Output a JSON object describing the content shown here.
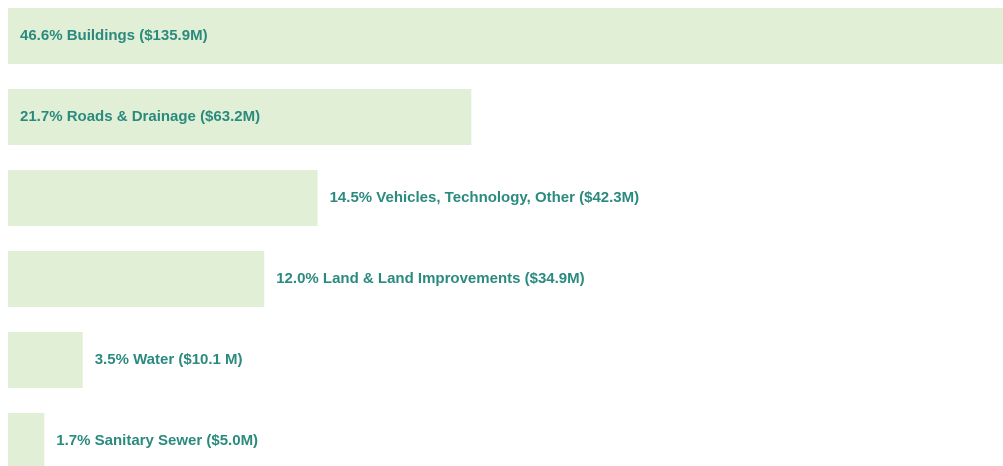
{
  "chart_data": {
    "type": "bar",
    "orientation": "horizontal",
    "color": "#e1efd6",
    "values": [
      46.6,
      21.7,
      14.5,
      12.0,
      3.5,
      1.7
    ],
    "value_labels": [
      "46.6% Buildings ($135.9M)",
      "21.7% Roads & Drainage ($63.2M)",
      "14.5% Vehicles, Technology, Other ($42.3M)",
      "12.0% Land & Land Improvements ($34.9M)",
      "3.5% Water ($10.1 M)",
      "1.7% Sanitary Sewer ($5.0M)"
    ]
  }
}
